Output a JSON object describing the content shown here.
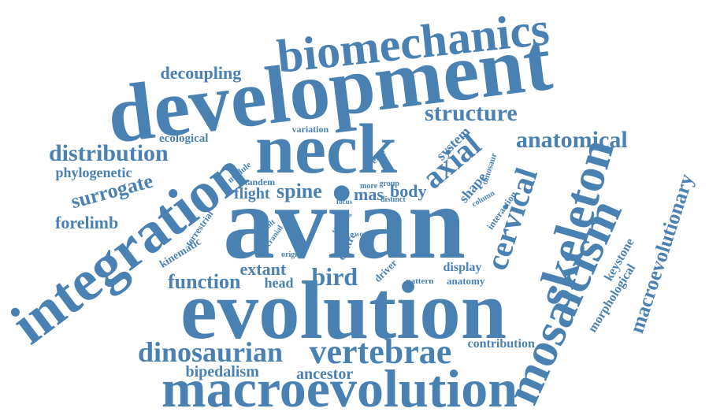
{
  "colors": {
    "word": "#4a81b3",
    "background": "#ffffff"
  },
  "words": [
    "avian",
    "evolution",
    "development",
    "neck",
    "integration",
    "macroevolution",
    "biomechanics",
    "skeleton",
    "mosaicism",
    "vertebrae",
    "dinosaurian",
    "cervical",
    "axial",
    "structure",
    "anatomical",
    "distribution",
    "surrogate",
    "spine",
    "bird",
    "function",
    "macroevolutionary",
    "decoupling",
    "forelimb",
    "phylogenetic",
    "ecological",
    "bipedalism",
    "ancestor",
    "contribution",
    "keystone",
    "morphological",
    "flight",
    "mas",
    "body",
    "shape",
    "system",
    "display",
    "anatomy",
    "extant",
    "head",
    "kinematic",
    "terrestrial",
    "tandem",
    "module",
    "variation",
    "diverse",
    "more",
    "group",
    "distinct",
    "focus",
    "taxon",
    "wing",
    "work",
    "result",
    "cranial",
    "origin",
    "centre",
    "driver",
    "pattern",
    "interaction",
    "column",
    "dinosaur"
  ]
}
